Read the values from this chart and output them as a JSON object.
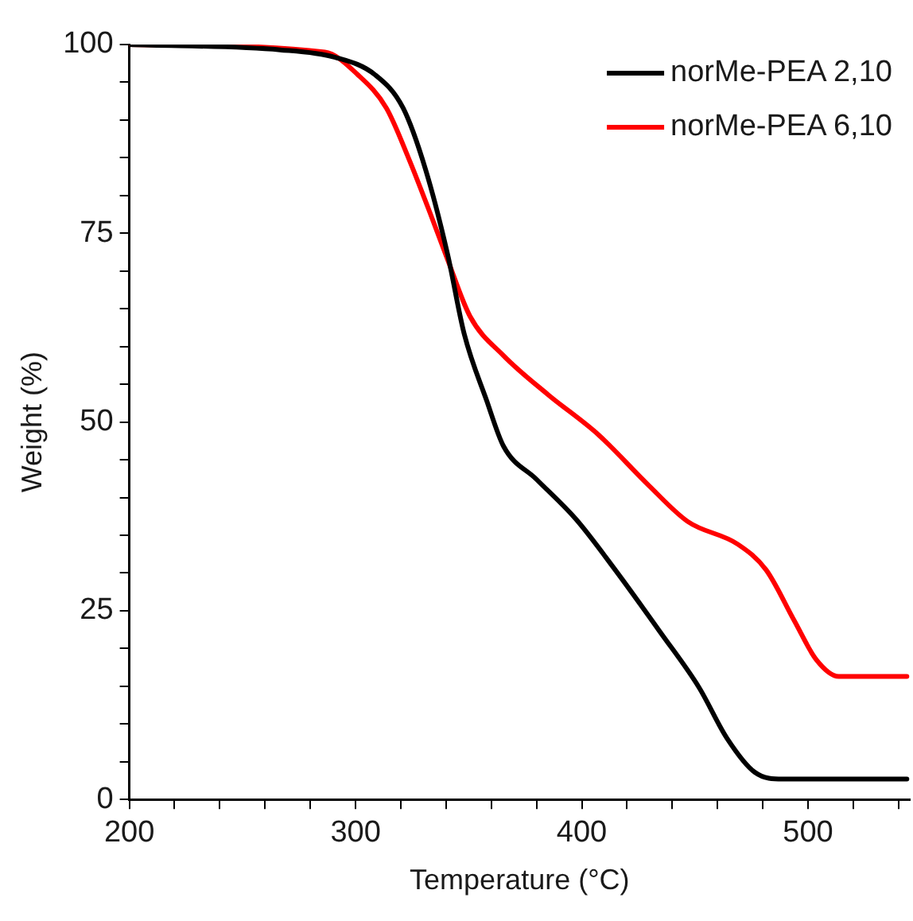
{
  "chart_data": {
    "type": "line",
    "xlabel": "Temperature (°C)",
    "ylabel": "Weight (%)",
    "xlim": [
      200,
      545
    ],
    "ylim": [
      0,
      100
    ],
    "xticks": [
      200,
      {
        "value": 220,
        "label": null
      },
      {
        "value": 240,
        "label": null
      },
      {
        "value": 260,
        "label": null
      },
      {
        "value": 280,
        "label": null
      },
      300,
      {
        "value": 320,
        "label": null
      },
      {
        "value": 340,
        "label": null
      },
      {
        "value": 360,
        "label": null
      },
      {
        "value": 380,
        "label": null
      },
      400,
      {
        "value": 420,
        "label": null
      },
      {
        "value": 440,
        "label": null
      },
      {
        "value": 460,
        "label": null
      },
      {
        "value": 480,
        "label": null
      },
      500,
      {
        "value": 520,
        "label": null
      },
      {
        "value": 540,
        "label": null
      }
    ],
    "yticks": [
      0,
      {
        "value": 5,
        "label": null
      },
      {
        "value": 10,
        "label": null
      },
      {
        "value": 15,
        "label": null
      },
      {
        "value": 20,
        "label": null
      },
      25,
      {
        "value": 30,
        "label": null
      },
      {
        "value": 35,
        "label": null
      },
      {
        "value": 40,
        "label": null
      },
      {
        "value": 45,
        "label": null
      },
      50,
      {
        "value": 55,
        "label": null
      },
      {
        "value": 60,
        "label": null
      },
      {
        "value": 65,
        "label": null
      },
      {
        "value": 70,
        "label": null
      },
      75,
      {
        "value": 80,
        "label": null
      },
      {
        "value": 85,
        "label": null
      },
      {
        "value": 90,
        "label": null
      },
      {
        "value": 95,
        "label": null
      },
      100
    ],
    "grid": false,
    "legend": "top right",
    "marker": "none",
    "line_style": "solid",
    "series": [
      {
        "name": "norMe-PEA 2,10",
        "color": "#000000",
        "x": [
          200,
          266.7,
          291,
          308.6,
          321,
          331,
          340.7,
          348,
          358,
          365.4,
          380,
          397.5,
          414.8,
          434.6,
          451.9,
          464.2,
          476.5,
          488.9,
          543.7
        ],
        "values": [
          100,
          99.3,
          98.3,
          96,
          91.6,
          83.4,
          72.2,
          61.7,
          52.8,
          46.8,
          42.4,
          37.1,
          30.4,
          22.2,
          14.8,
          8.1,
          3.6,
          2.7,
          2.7
        ]
      },
      {
        "name": "norMe-PEA 6,10",
        "color": "#ff0000",
        "x": [
          200,
          286.4,
          301,
          313.6,
          323.5,
          333.3,
          340.7,
          350.6,
          365.4,
          385.2,
          407.4,
          429.6,
          446.9,
          469,
          481.5,
          493.9,
          503.7,
          513.6,
          543.7
        ],
        "values": [
          100,
          99,
          96,
          91.6,
          84.9,
          77.4,
          71.5,
          64,
          58.8,
          53.6,
          48.3,
          41.6,
          36.8,
          33.8,
          30.4,
          23.7,
          18.5,
          16.3,
          16.3
        ]
      }
    ]
  }
}
